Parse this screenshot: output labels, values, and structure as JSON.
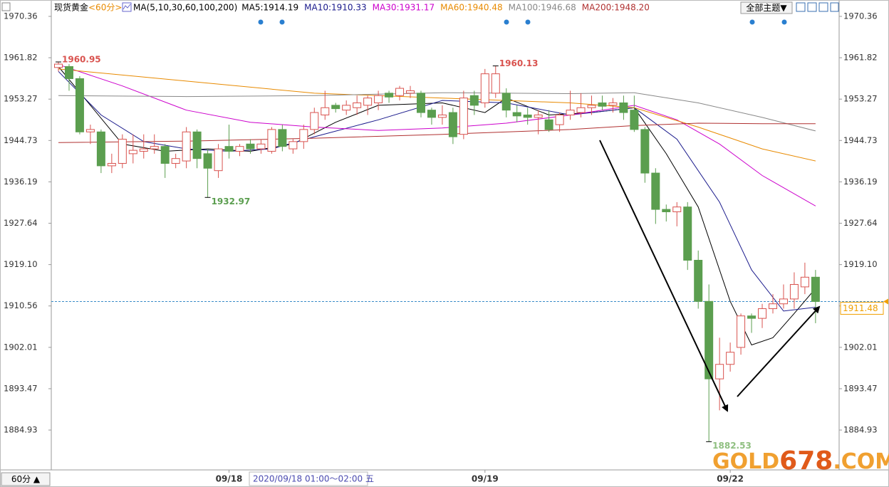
{
  "toolbar": {
    "instrument": "现货黄金",
    "period": "<60分>",
    "indicator": "MA(5,10,30,60,100,200)",
    "theme_button": "全部主题▼"
  },
  "period_button": "60分 ▲",
  "watermark": [
    "GOLD",
    "678",
    ".COM"
  ],
  "chart_data": {
    "type": "candlestick",
    "categories": [
      null,
      null,
      null,
      null,
      null,
      null,
      null,
      null,
      null,
      null,
      null,
      null,
      null,
      null,
      null,
      null,
      "09/18",
      null,
      null,
      null,
      null,
      null,
      null,
      null,
      null,
      null,
      null,
      null,
      null,
      null,
      null,
      null,
      null,
      null,
      null,
      null,
      null,
      null,
      null,
      null,
      "09/19",
      null,
      null,
      null,
      null,
      null,
      null,
      null,
      null,
      null,
      null,
      null,
      null,
      null,
      null,
      null,
      null,
      null,
      null,
      null,
      null,
      null,
      null,
      "09/22",
      null,
      null,
      null,
      null,
      null,
      null,
      null,
      null
    ],
    "open": [
      1959.8,
      1960,
      1957.5,
      1946.5,
      1946.5,
      1939.5,
      1940,
      1942,
      1942.5,
      1943,
      1943.5,
      1940,
      1940.5,
      1946.5,
      1942,
      1938.5,
      1943.5,
      1942.5,
      1944,
      1943,
      1942.5,
      1947,
      1943,
      1944.5,
      1947,
      1950,
      1952,
      1951,
      1951.5,
      1952,
      1952.5,
      1954.5,
      1954,
      1954.5,
      1954.5,
      1951,
      1949.5,
      1950.5,
      1946,
      1954,
      1952.5,
      1954.5,
      1954.5,
      1950.5,
      1950,
      1949.5,
      1949,
      1948,
      1950,
      1950.5,
      1951.5,
      1952.5,
      1952,
      1952.5,
      1951,
      1947,
      1938,
      1930.5,
      1930,
      1931,
      1920,
      1911.5,
      1895.5,
      1898.5,
      1902,
      1908.5,
      1908,
      1910,
      1911,
      1912,
      1914.5,
      1916.5
    ],
    "high": [
      1960.95,
      1960.5,
      1958,
      1948,
      1947,
      1942,
      1946,
      1946,
      1946,
      1946,
      1944,
      1942,
      1947.5,
      1947,
      1943,
      1944,
      1948,
      1944,
      1945,
      1945,
      1947.5,
      1948,
      1945,
      1948,
      1951.5,
      1955,
      1952.5,
      1953,
      1954,
      1954,
      1955,
      1955,
      1956,
      1956,
      1955,
      1951.5,
      1952,
      1951.5,
      1955,
      1955,
      1959.5,
      1960.13,
      1955.5,
      1952,
      1951.5,
      1951,
      1951,
      1950.5,
      1955,
      1954.5,
      1954,
      1954,
      1953.5,
      1954,
      1954,
      1947.5,
      1939,
      1931.5,
      1932,
      1932,
      1922,
      1915,
      1904,
      1903,
      1909,
      1909,
      1911,
      1913,
      1915,
      1917.5,
      1919.5,
      1918
    ],
    "low": [
      1959,
      1955,
      1946,
      1944,
      1938,
      1938,
      1939,
      1940,
      1941,
      1942,
      1937,
      1939,
      1939,
      1939,
      1932.97,
      1937,
      1941,
      1941.5,
      1942,
      1942,
      1942,
      1942.5,
      1942,
      1943,
      1946,
      1949,
      1950.5,
      1950,
      1950,
      1950,
      1951,
      1952.5,
      1953,
      1953.5,
      1949.5,
      1948,
      1948,
      1944,
      1945,
      1950,
      1951.5,
      1953.5,
      1949.5,
      1948.5,
      1948,
      1946,
      1946.5,
      1946.5,
      1949,
      1949.5,
      1950,
      1951,
      1950.5,
      1949,
      1946.5,
      1936,
      1927.5,
      1928,
      1927,
      1918,
      1910,
      1882.53,
      1889,
      1897,
      1900.5,
      1905,
      1906,
      1909,
      1910,
      1910,
      1913,
      1907
    ],
    "close": [
      1960.5,
      1957.5,
      1946.5,
      1947,
      1939.5,
      1940,
      1945,
      1942.7,
      1943,
      1943.5,
      1940,
      1941,
      1946.5,
      1941,
      1939,
      1943,
      1942.5,
      1943.5,
      1943,
      1944,
      1947,
      1943.5,
      1944.5,
      1947,
      1950.5,
      1951.5,
      1951.3,
      1952,
      1952.5,
      1953.5,
      1954,
      1953.7,
      1955.5,
      1955,
      1950.5,
      1949.5,
      1950,
      1945.5,
      1953.5,
      1952,
      1958.5,
      1958.5,
      1951,
      1949.8,
      1949.5,
      1950,
      1947,
      1950,
      1951,
      1951.5,
      1952,
      1951.8,
      1952.5,
      1950.5,
      1947,
      1938,
      1930.5,
      1930,
      1931,
      1920,
      1911.5,
      1895.5,
      1898.5,
      1901,
      1908.5,
      1908,
      1910,
      1911,
      1912,
      1915,
      1916.5,
      1911.48
    ],
    "up_color": "#d9534f",
    "down_color": "#5b9e4f",
    "ylim": [
      1876.7,
      1973.74
    ],
    "yticks": [
      1970.36,
      1961.82,
      1953.27,
      1944.73,
      1936.19,
      1927.64,
      {
        "value": 1919.1,
        "label": "1919.10"
      },
      1910.56,
      1902.01,
      1893.47,
      1884.93
    ],
    "series": [
      {
        "name": "MA5:1914.19",
        "color": "#000000",
        "x": [
          0,
          3,
          6,
          10,
          14,
          18,
          22,
          26,
          30,
          36,
          40,
          42,
          46,
          50,
          54,
          57,
          60,
          63,
          65,
          67,
          69,
          71
        ],
        "values": [
          1960,
          1952,
          1944,
          1942.5,
          1943,
          1942.5,
          1944,
          1948.5,
          1952,
          1952.5,
          1950.5,
          1953.5,
          1950,
          1950.5,
          1951.5,
          1942,
          1931,
          1911.5,
          1902.5,
          1904,
          1909,
          1914.2
        ]
      },
      {
        "name": "MA10:1910.33",
        "color": "#1a1a8c",
        "x": [
          0,
          4,
          8,
          12,
          16,
          20,
          24,
          30,
          36,
          42,
          48,
          54,
          58,
          62,
          65,
          68,
          71
        ],
        "values": [
          1959,
          1950,
          1944.5,
          1943,
          1942.5,
          1943,
          1945.5,
          1949,
          1953,
          1952.5,
          1950,
          1951.5,
          1945,
          1932,
          1918,
          1909.5,
          1910.3
        ]
      },
      {
        "name": "MA30:1931.17",
        "color": "#cc00cc",
        "x": [
          0,
          6,
          12,
          18,
          24,
          30,
          36,
          42,
          48,
          54,
          58,
          62,
          66,
          71
        ],
        "values": [
          1960.4,
          1956,
          1951,
          1948.5,
          1947.5,
          1946.8,
          1947.3,
          1948.3,
          1950,
          1952,
          1949,
          1944,
          1937.5,
          1931.2
        ]
      },
      {
        "name": "MA60:1940.48",
        "color": "#e88a00",
        "x": [
          0,
          12,
          24,
          36,
          48,
          54,
          60,
          66,
          71
        ],
        "values": [
          1959.5,
          1957,
          1954.5,
          1953.5,
          1952.5,
          1951.5,
          1947.5,
          1943,
          1940.5
        ]
      },
      {
        "name": "MA100:1946.68",
        "color": "#888888",
        "x": [
          0,
          12,
          24,
          36,
          48,
          54,
          60,
          66,
          71
        ],
        "values": [
          1954,
          1953.8,
          1954,
          1954.6,
          1954.4,
          1954.6,
          1952.5,
          1949.5,
          1946.7
        ]
      },
      {
        "name": "MA200:1948.20",
        "color": "#b03030",
        "x": [
          0,
          12,
          24,
          36,
          48,
          54,
          60,
          66,
          71
        ],
        "values": [
          1944.3,
          1944.6,
          1945.2,
          1946,
          1947,
          1947.8,
          1948.3,
          1948.2,
          1948.2
        ]
      }
    ],
    "annotations": [
      {
        "value": 1960.95,
        "color": "#d9534f"
      },
      {
        "value": 1960.13,
        "color": "#d9534f"
      },
      {
        "value": 1932.97,
        "color": "#5b9e4f"
      },
      {
        "value": 1882.53,
        "color": "#8fbf80"
      }
    ],
    "last_price": 1911.48,
    "last_price_color": "#f0a000",
    "crosshair_label": "2020/09/18 01:00～02:00 五"
  }
}
